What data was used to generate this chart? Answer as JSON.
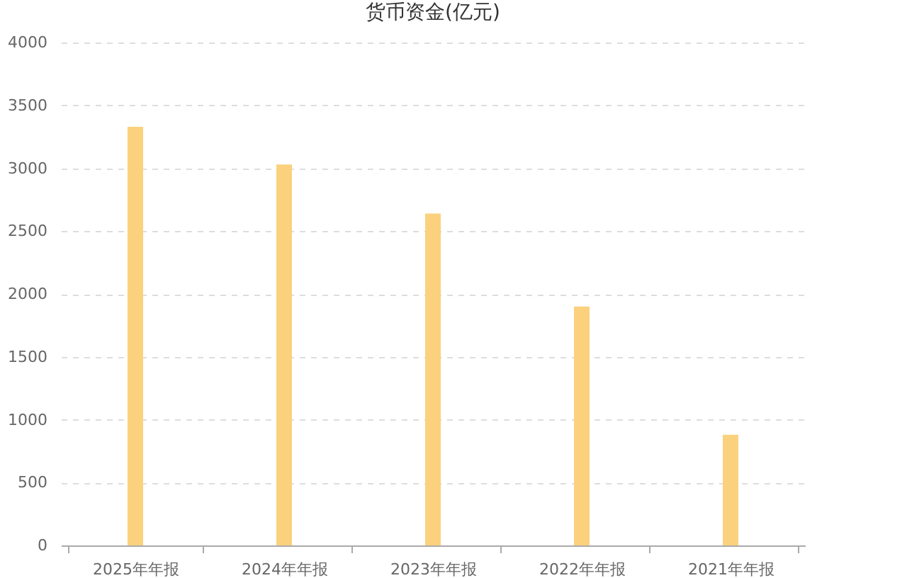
{
  "chart_data": {
    "type": "bar",
    "title": "货币资金(亿元)",
    "categories": [
      "2025年年报",
      "2024年年报",
      "2023年年报",
      "2022年年报",
      "2021年年报"
    ],
    "series": [
      {
        "color": "#fbd17e",
        "values": [
          3330,
          3030,
          2640,
          1900,
          880
        ]
      }
    ],
    "ylim": [
      0,
      4000
    ],
    "yticks": [
      0,
      500,
      1000,
      1500,
      2000,
      2500,
      3000,
      3500,
      4000
    ],
    "grid": "y",
    "legend": false
  }
}
